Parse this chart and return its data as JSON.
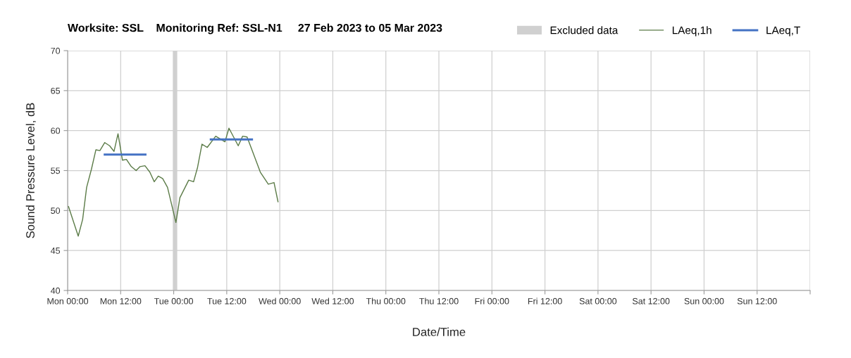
{
  "chart_data": {
    "type": "line",
    "title": "Worksite: SSL    Monitoring Ref: SSL-N1     27 Feb 2023 to 05 Mar 2023",
    "xlabel": "Date/Time",
    "ylabel": "Sound Pressure Level, dB",
    "series": [
      {
        "name": "LAeq,1h",
        "color": "#5b7b47",
        "x": [
          "2023-02-27T00:12",
          "2023-02-27T02:24",
          "2023-02-27T03:24",
          "2023-02-27T04:18",
          "2023-02-27T05:24",
          "2023-02-27T06:24",
          "2023-02-27T07:18",
          "2023-02-27T08:24",
          "2023-02-27T09:30",
          "2023-02-27T10:30",
          "2023-02-27T11:24",
          "2023-02-27T12:24",
          "2023-02-27T13:18",
          "2023-02-27T14:24",
          "2023-02-27T15:30",
          "2023-02-27T16:24",
          "2023-02-27T17:30",
          "2023-02-27T18:36",
          "2023-02-27T19:36",
          "2023-02-27T20:30",
          "2023-02-27T21:30",
          "2023-02-27T22:36",
          "2023-02-28T00:30",
          "2023-02-28T01:24",
          "2023-02-28T03:24",
          "2023-02-28T04:30",
          "2023-02-28T05:24",
          "2023-02-28T06:24",
          "2023-02-28T07:36",
          "2023-02-28T09:30",
          "2023-02-28T11:36",
          "2023-02-28T12:30",
          "2023-02-28T14:36",
          "2023-02-28T15:36",
          "2023-02-28T16:36",
          "2023-02-28T17:42",
          "2023-02-28T19:36",
          "2023-02-28T21:24",
          "2023-02-28T22:42",
          "2023-02-28T23:36"
        ],
        "values": [
          50.5,
          46.8,
          48.9,
          52.9,
          55.2,
          57.6,
          57.5,
          58.5,
          58.1,
          57.4,
          59.6,
          56.3,
          56.4,
          55.5,
          55.0,
          55.5,
          55.6,
          54.8,
          53.6,
          54.3,
          54.0,
          52.9,
          48.5,
          51.6,
          53.8,
          53.6,
          55.4,
          58.3,
          57.9,
          59.3,
          58.6,
          60.3,
          58.1,
          59.3,
          59.2,
          57.6,
          54.8,
          53.3,
          53.5,
          51.1
        ]
      },
      {
        "name": "LAeq,T",
        "color": "#4472c4",
        "x": [
          "2023-02-27T08:24",
          "2023-02-27T17:36",
          "2023-02-28T01:00",
          "2023-02-28T08:24",
          "2023-02-28T17:42"
        ],
        "values": [
          57.0,
          57.0,
          null,
          58.9,
          58.9
        ]
      }
    ],
    "bands": [
      {
        "axis": "x",
        "from": "2023-02-27T23:48",
        "to": "2023-02-28T00:48",
        "label": "Excluded data",
        "color": "#d0d0d0"
      }
    ],
    "xlim": [
      "2023-02-27T00:00",
      "2023-03-06T00:00"
    ],
    "xticks": [
      {
        "value": "2023-02-27T00:00",
        "label": "Mon 00:00"
      },
      {
        "value": "2023-02-27T12:00",
        "label": "Mon 12:00"
      },
      {
        "value": "2023-02-28T00:00",
        "label": "Tue 00:00"
      },
      {
        "value": "2023-02-28T12:00",
        "label": "Tue 12:00"
      },
      {
        "value": "2023-03-01T00:00",
        "label": "Wed 00:00"
      },
      {
        "value": "2023-03-01T12:00",
        "label": "Wed 12:00"
      },
      {
        "value": "2023-03-02T00:00",
        "label": "Thu 00:00"
      },
      {
        "value": "2023-03-02T12:00",
        "label": "Thu 12:00"
      },
      {
        "value": "2023-03-03T00:00",
        "label": "Fri 00:00"
      },
      {
        "value": "2023-03-03T12:00",
        "label": "Fri 12:00"
      },
      {
        "value": "2023-03-04T00:00",
        "label": "Sat 00:00"
      },
      {
        "value": "2023-03-04T12:00",
        "label": "Sat 12:00"
      },
      {
        "value": "2023-03-05T00:00",
        "label": "Sun 00:00"
      },
      {
        "value": "2023-03-05T12:00",
        "label": "Sun 12:00"
      },
      {
        "value": "2023-03-06T00:00",
        "label": null
      }
    ],
    "ylim": [
      40,
      70
    ],
    "yticks": [
      40,
      45,
      50,
      55,
      60,
      65,
      70
    ],
    "grid": true,
    "legend": "top right",
    "marker": "none",
    "line_style": "solid"
  }
}
